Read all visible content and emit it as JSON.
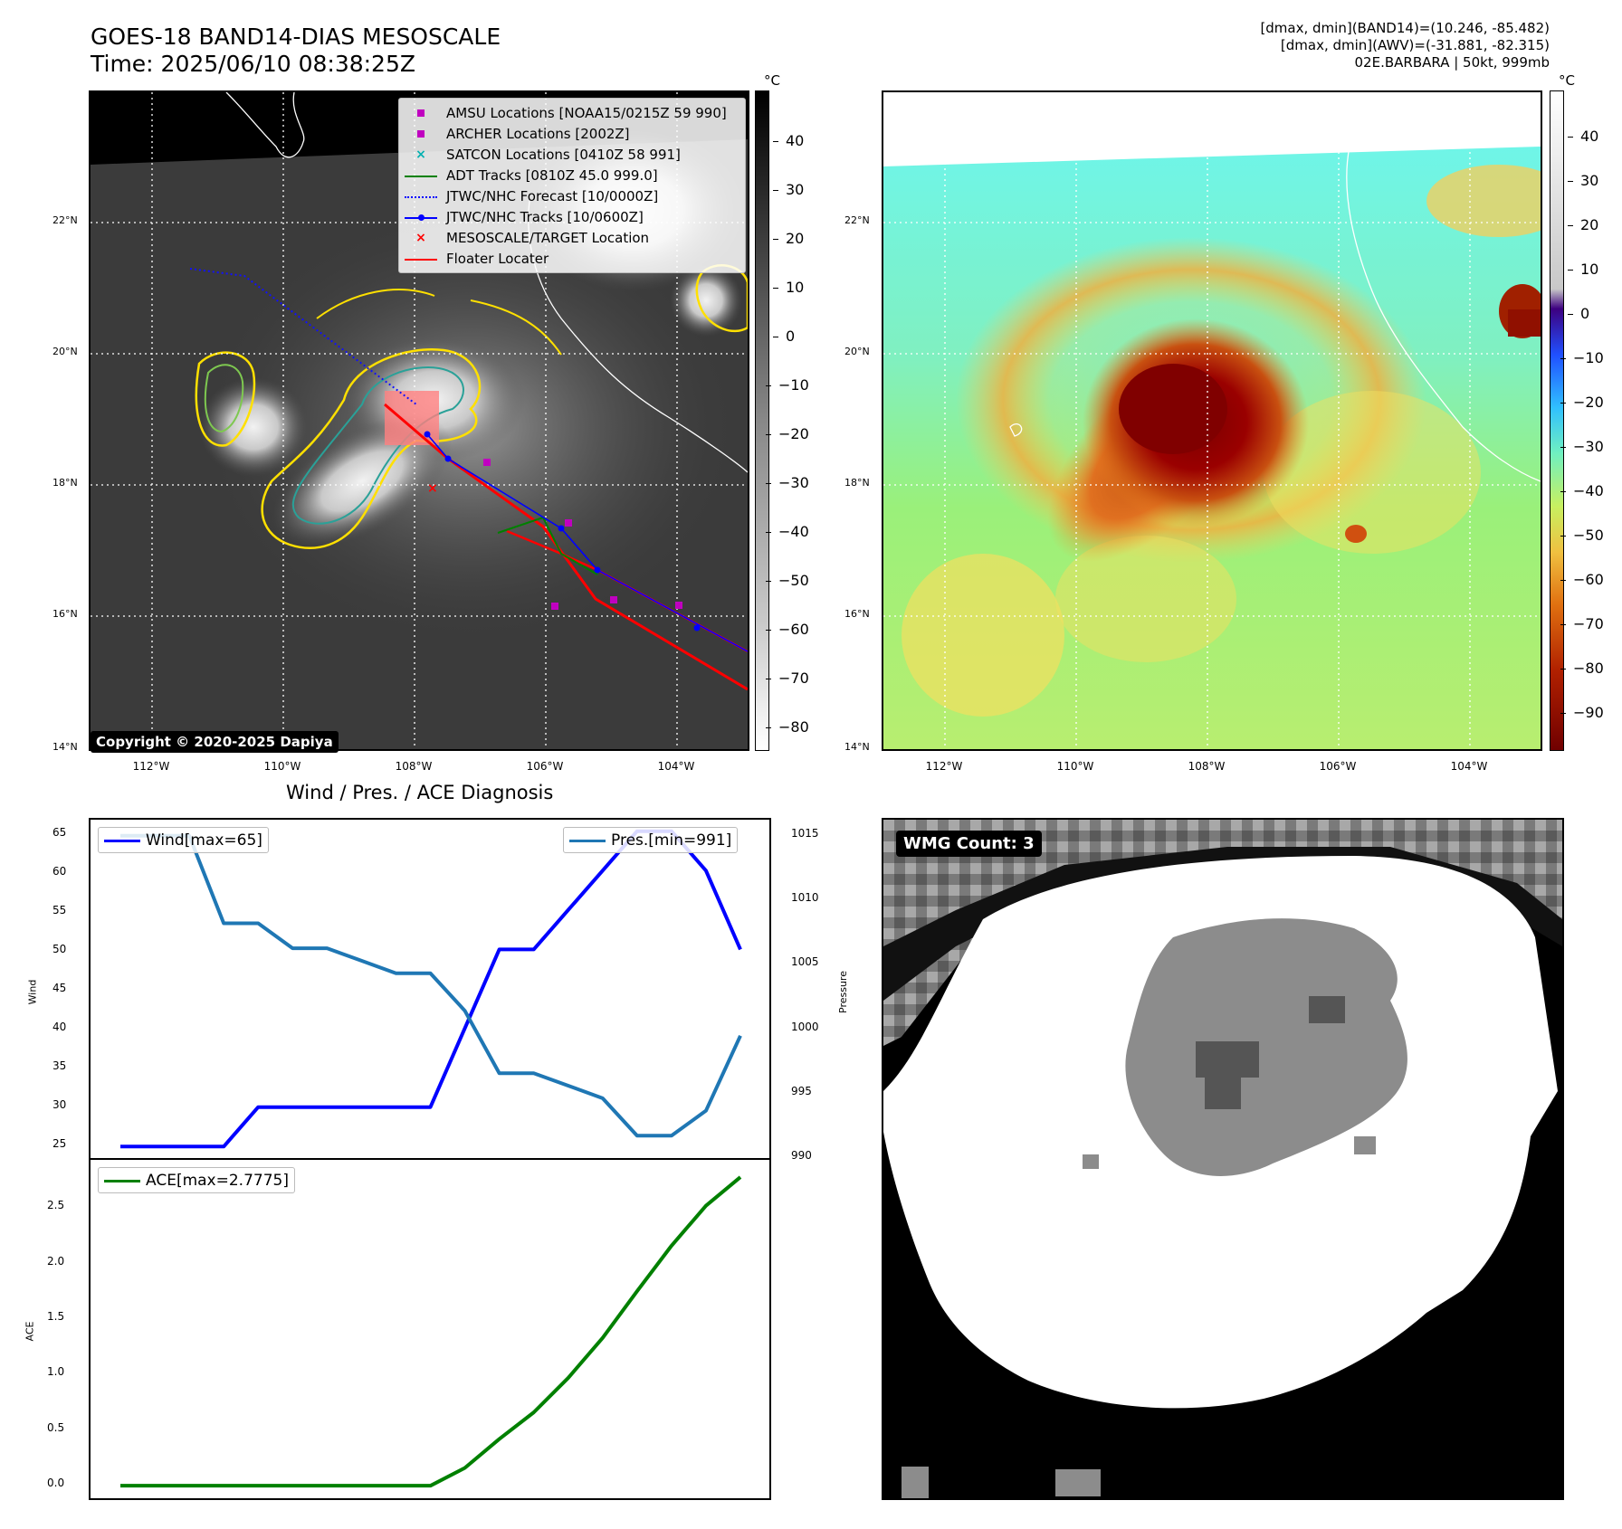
{
  "header": {
    "title_line1": "GOES-18 BAND14-DIAS MESOSCALE",
    "title_line2": "Time: 2025/06/10 08:38:25Z",
    "stats_line1": "[dmax, dmin](BAND14)=(10.246, -85.482)",
    "stats_line2": "[dmax, dmin](AWV)=(-31.881, -82.315)",
    "stats_line3": "02E.BARBARA | 50kt, 999mb"
  },
  "map": {
    "lat_labels": [
      "22°N",
      "20°N",
      "18°N",
      "16°N",
      "14°N"
    ],
    "lon_labels": [
      "112°W",
      "110°W",
      "108°W",
      "106°W",
      "104°W"
    ],
    "colorbar_unit": "°C",
    "ir_colorbar_ticks": [
      "40",
      "30",
      "20",
      "10",
      "0",
      "−10",
      "−20",
      "−30",
      "−40",
      "−50",
      "−60",
      "−70",
      "−80"
    ],
    "dias_colorbar_ticks": [
      "40",
      "30",
      "20",
      "10",
      "0",
      "−10",
      "−20",
      "−30",
      "−40",
      "−50",
      "−60",
      "−70",
      "−80",
      "−90"
    ],
    "copyright": "Copyright © 2020-2025 Dapiya"
  },
  "legend": {
    "items": [
      {
        "label": "AMSU Locations [NOAA15/0215Z 59 990]",
        "symbol": "square",
        "color": "#c000c0"
      },
      {
        "label": "ARCHER Locations [2002Z]",
        "symbol": "square",
        "color": "#c000c0"
      },
      {
        "label": "SATCON Locations [0410Z 58 991]",
        "symbol": "x",
        "color": "#00b0b0"
      },
      {
        "label": "ADT Tracks [0810Z 45.0 999.0]",
        "symbol": "line",
        "color": "#008000"
      },
      {
        "label": "JTWC/NHC Forecast [10/0000Z]",
        "symbol": "dotted",
        "color": "#0000ff"
      },
      {
        "label": "JTWC/NHC Tracks [10/0600Z]",
        "symbol": "line-dot",
        "color": "#0000ff"
      },
      {
        "label": "MESOSCALE/TARGET Location",
        "symbol": "x",
        "color": "#ff0000"
      },
      {
        "label": "Floater Locater",
        "symbol": "line",
        "color": "#ff0000"
      }
    ]
  },
  "diag": {
    "title": "Wind / Pres. / ACE Diagnosis",
    "wind_ylabel": "Wind",
    "pres_ylabel": "Pressure",
    "ace_ylabel": "ACE",
    "wind_legend": "Wind[max=65]",
    "pres_legend": "Pres.[min=991]",
    "ace_legend": "ACE[max=2.7775]",
    "wind_ticks": [
      "65",
      "60",
      "55",
      "50",
      "45",
      "40",
      "35",
      "30",
      "25"
    ],
    "pres_ticks": [
      "1015",
      "1010",
      "1005",
      "1000",
      "995",
      "990"
    ],
    "ace_ticks": [
      "2.5",
      "2.0",
      "1.5",
      "1.0",
      "0.5",
      "0.0"
    ]
  },
  "wmg": {
    "label": "WMG Count: 3"
  },
  "chart_data": [
    {
      "type": "line",
      "title": "Wind / Pres. / ACE Diagnosis",
      "ylabel": "Wind",
      "ylim": [
        24,
        66
      ],
      "series": [
        {
          "name": "Wind[max=65]",
          "color": "#0000ff",
          "values": [
            25,
            25,
            25,
            25,
            30,
            30,
            30,
            30,
            30,
            30,
            40,
            50,
            50,
            55,
            60,
            65,
            65,
            60,
            50
          ]
        }
      ]
    },
    {
      "type": "line",
      "ylabel": "Pressure",
      "ylim": [
        989.5,
        1016
      ],
      "series": [
        {
          "name": "Pres.[min=991]",
          "color": "#1f77b4",
          "values": [
            1015,
            1015,
            1015,
            1008,
            1008,
            1006,
            1006,
            1005,
            1004,
            1004,
            1001,
            996,
            996,
            995,
            994,
            991,
            991,
            993,
            999
          ]
        }
      ]
    },
    {
      "type": "line",
      "ylabel": "ACE",
      "ylim": [
        -0.08,
        2.9
      ],
      "series": [
        {
          "name": "ACE[max=2.7775]",
          "color": "#008000",
          "values": [
            0,
            0,
            0,
            0,
            0,
            0,
            0,
            0,
            0,
            0,
            0.16,
            0.42,
            0.66,
            0.97,
            1.33,
            1.75,
            2.16,
            2.52,
            2.7775
          ]
        }
      ]
    }
  ]
}
